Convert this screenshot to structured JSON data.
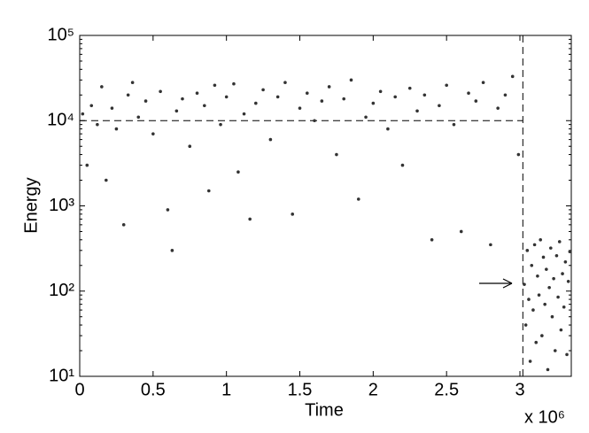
{
  "chart_data": {
    "type": "scatter",
    "x_label": "Time",
    "y_label": "Energy",
    "x_multiplier": "x 10⁶",
    "x": [
      0.02,
      0.05,
      0.08,
      0.12,
      0.15,
      0.18,
      0.22,
      0.25,
      0.3,
      0.33,
      0.36,
      0.4,
      0.45,
      0.5,
      0.55,
      0.6,
      0.63,
      0.66,
      0.7,
      0.75,
      0.8,
      0.85,
      0.88,
      0.92,
      0.96,
      1.0,
      1.05,
      1.08,
      1.12,
      1.16,
      1.2,
      1.25,
      1.3,
      1.35,
      1.4,
      1.45,
      1.5,
      1.55,
      1.6,
      1.65,
      1.7,
      1.75,
      1.8,
      1.85,
      1.9,
      1.95,
      2.0,
      2.05,
      2.1,
      2.15,
      2.2,
      2.25,
      2.3,
      2.35,
      2.4,
      2.45,
      2.5,
      2.55,
      2.6,
      2.65,
      2.7,
      2.75,
      2.8,
      2.85,
      2.9,
      2.95,
      2.99,
      3.03,
      3.04,
      3.05,
      3.06,
      3.07,
      3.08,
      3.09,
      3.1,
      3.11,
      3.12,
      3.13,
      3.14,
      3.15,
      3.16,
      3.17,
      3.18,
      3.19,
      3.2,
      3.21,
      3.22,
      3.23,
      3.24,
      3.25,
      3.26,
      3.27,
      3.28,
      3.29,
      3.3,
      3.31,
      3.32,
      3.33,
      3.34
    ],
    "series": [
      {
        "color": "#333333",
        "values": [
          12000,
          3000,
          15000,
          9000,
          25000,
          2000,
          14000,
          8000,
          600,
          20000,
          28000,
          11000,
          17000,
          7000,
          22000,
          900,
          300,
          13000,
          18000,
          5000,
          21000,
          15000,
          1500,
          26000,
          9000,
          19000,
          27000,
          2500,
          12000,
          700,
          16000,
          23000,
          6000,
          19000,
          28000,
          800,
          14000,
          21000,
          10000,
          17000,
          25000,
          4000,
          18000,
          30000,
          1200,
          11000,
          16000,
          22000,
          8000,
          19000,
          3000,
          24000,
          13000,
          20000,
          400,
          15000,
          26000,
          9000,
          500,
          21000,
          17000,
          28000,
          350,
          14000,
          20000,
          33000,
          4000,
          120,
          40,
          300,
          80,
          15,
          200,
          60,
          350,
          25,
          150,
          90,
          400,
          30,
          250,
          70,
          180,
          12,
          110,
          320,
          50,
          140,
          20,
          260,
          85,
          380,
          35,
          160,
          65,
          220,
          18,
          130,
          290
        ]
      }
    ],
    "reference_lines": {
      "y": 10000,
      "x": 3.02
    },
    "log_y": true,
    "xlim": [
      0,
      3.35
    ],
    "ylim": [
      10,
      100000
    ],
    "xticks": [
      0,
      0.5,
      1,
      1.5,
      2,
      2.5,
      3
    ],
    "yticks": [
      {
        "value": 10,
        "label": "10¹"
      },
      {
        "value": 100,
        "label": "10²"
      },
      {
        "value": 1000,
        "label": "10³"
      },
      {
        "value": 10000,
        "label": "10⁴"
      },
      {
        "value": 100000,
        "label": "10⁵"
      }
    ]
  }
}
